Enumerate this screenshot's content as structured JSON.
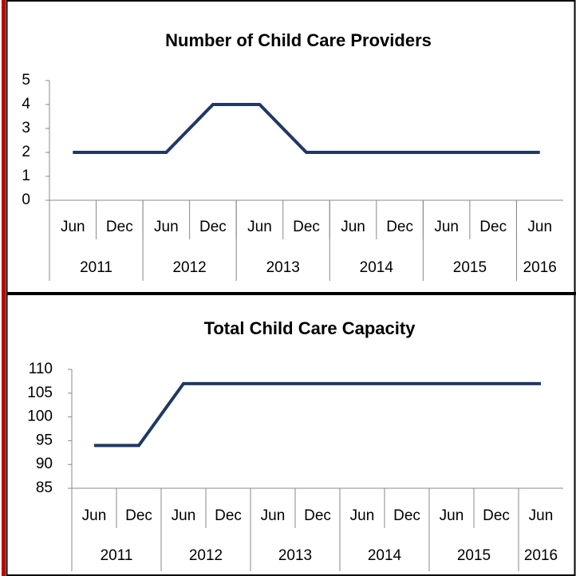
{
  "chart_data": [
    {
      "type": "line",
      "title": "Number of Child Care Providers",
      "categories": [
        "Jun",
        "Dec",
        "Jun",
        "Dec",
        "Jun",
        "Dec",
        "Jun",
        "Dec",
        "Jun",
        "Dec",
        "Jun"
      ],
      "groups": [
        {
          "label": "2011",
          "span": 2
        },
        {
          "label": "2012",
          "span": 2
        },
        {
          "label": "2013",
          "span": 2
        },
        {
          "label": "2014",
          "span": 2
        },
        {
          "label": "2015",
          "span": 2
        },
        {
          "label": "2016",
          "span": 1
        }
      ],
      "values": [
        2,
        2,
        2,
        4,
        4,
        2,
        2,
        2,
        2,
        2,
        2
      ],
      "color": "#1f3864",
      "ylim": [
        0,
        5
      ],
      "yticks": [
        0,
        1,
        2,
        3,
        4,
        5
      ]
    },
    {
      "type": "line",
      "title": "Total Child Care Capacity",
      "categories": [
        "Jun",
        "Dec",
        "Jun",
        "Dec",
        "Jun",
        "Dec",
        "Jun",
        "Dec",
        "Jun",
        "Dec",
        "Jun"
      ],
      "groups": [
        {
          "label": "2011",
          "span": 2
        },
        {
          "label": "2012",
          "span": 2
        },
        {
          "label": "2013",
          "span": 2
        },
        {
          "label": "2014",
          "span": 2
        },
        {
          "label": "2015",
          "span": 2
        },
        {
          "label": "2016",
          "span": 1
        }
      ],
      "values": [
        94,
        94,
        107,
        107,
        107,
        107,
        107,
        107,
        107,
        107,
        107
      ],
      "color": "#1f3864",
      "ylim": [
        85,
        110
      ],
      "yticks": [
        85,
        90,
        95,
        100,
        105,
        110
      ]
    }
  ]
}
